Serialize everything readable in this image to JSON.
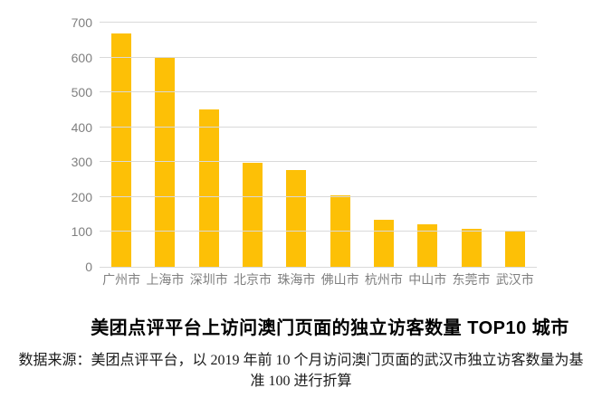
{
  "chart_data": {
    "type": "bar",
    "title": "美团点评平台上访问澳门页面的独立访客数量 TOP10 城市",
    "categories": [
      "广州市",
      "上海市",
      "深圳市",
      "北京市",
      "珠海市",
      "佛山市",
      "杭州市",
      "中山市",
      "东莞市",
      "武汉市"
    ],
    "values": [
      670,
      600,
      450,
      297,
      278,
      205,
      135,
      122,
      110,
      100
    ],
    "xlabel": "",
    "ylabel": "",
    "ylim": [
      0,
      700
    ],
    "yticks": [
      0,
      100,
      200,
      300,
      400,
      500,
      600,
      700
    ],
    "grid": true,
    "legend": false,
    "bar_color": "#FDC006",
    "gridline_color": "#D9D9D9",
    "tick_label_color": "#7F7F7F"
  },
  "caption": {
    "line1": "数据来源：美团点评平台，以 2019 年前 10 个月访问澳门页面的武汉市独立访客数量为基",
    "line2": "准 100 进行折算"
  }
}
